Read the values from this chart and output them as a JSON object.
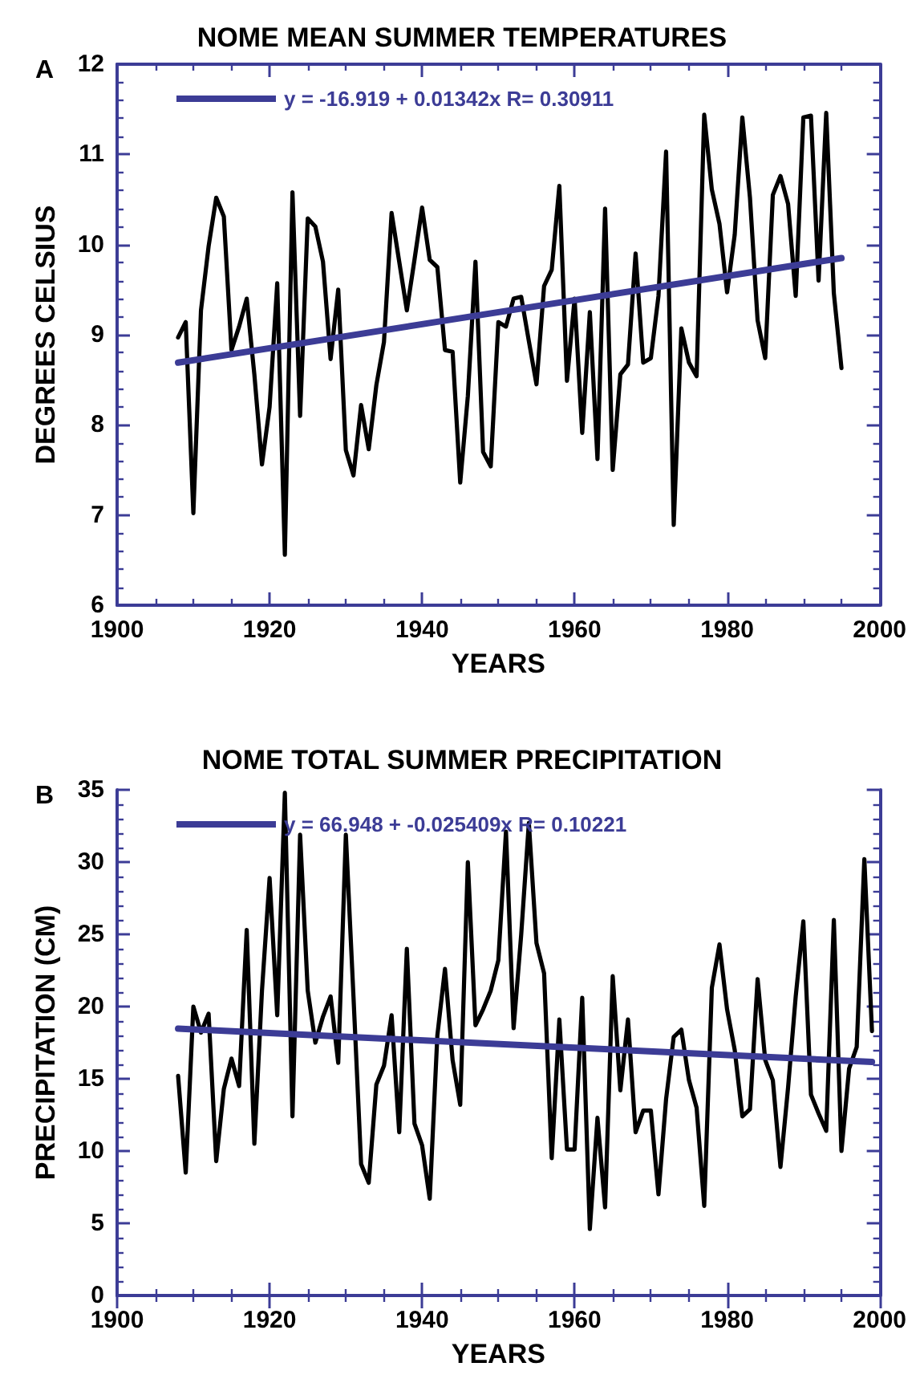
{
  "chart_data": [
    {
      "type": "line",
      "title": "NOME MEAN SUMMER TEMPERATURES",
      "xlabel": "YEARS",
      "ylabel": "DEGREES CELSIUS",
      "annotations": [
        "A"
      ],
      "legend": "top left",
      "marker": "none",
      "line_style": "solid",
      "xlim": [
        1900,
        2000
      ],
      "xticks": [
        1900,
        1920,
        1940,
        1960,
        1980,
        2000
      ],
      "ylim": [
        6,
        12
      ],
      "yticks": [
        6,
        7,
        8,
        9,
        10,
        11,
        12
      ],
      "x": [
        1908,
        1909,
        1910,
        1911,
        1912,
        1913,
        1914,
        1915,
        1916,
        1917,
        1918,
        1919,
        1920,
        1921,
        1922,
        1923,
        1924,
        1925,
        1926,
        1927,
        1928,
        1929,
        1930,
        1931,
        1932,
        1933,
        1934,
        1935,
        1936,
        1937,
        1938,
        1939,
        1940,
        1941,
        1942,
        1943,
        1944,
        1945,
        1946,
        1947,
        1948,
        1949,
        1950,
        1951,
        1952,
        1953,
        1954,
        1955,
        1956,
        1957,
        1958,
        1959,
        1960,
        1961,
        1962,
        1963,
        1964,
        1965,
        1966,
        1967,
        1968,
        1969,
        1970,
        1971,
        1972,
        1973,
        1974,
        1975,
        1976,
        1977,
        1978,
        1979,
        1980,
        1981,
        1982,
        1983,
        1984,
        1985,
        1986,
        1987,
        1988,
        1989,
        1990,
        1991,
        1992,
        1993,
        1994,
        1995
      ],
      "series": [
        {
          "color": "#000000",
          "values": [
            8.97,
            9.14,
            7.02,
            9.27,
            9.98,
            10.52,
            10.31,
            8.83,
            9.09,
            9.4,
            8.56,
            7.56,
            8.2,
            9.57,
            6.56,
            10.58,
            8.1,
            10.29,
            10.2,
            9.81,
            8.73,
            9.5,
            7.72,
            7.44,
            8.22,
            7.73,
            8.44,
            8.92,
            10.35,
            9.81,
            9.27,
            9.83,
            10.41,
            9.83,
            9.75,
            8.83,
            8.81,
            7.36,
            8.32,
            9.81,
            7.7,
            7.54,
            9.14,
            9.09,
            9.4,
            9.42,
            8.93,
            8.45,
            9.54,
            9.72,
            10.65,
            8.49,
            9.4,
            7.91,
            9.25,
            7.62,
            10.4,
            7.5,
            8.56,
            8.67,
            9.9,
            8.69,
            8.74,
            9.43,
            11.03,
            6.89,
            9.07,
            8.69,
            8.54,
            11.44,
            10.61,
            10.23,
            9.47,
            10.11,
            11.41,
            10.52,
            9.16,
            8.74,
            10.55,
            10.76,
            10.45,
            9.43,
            11.41,
            11.43,
            9.6,
            11.46,
            9.46,
            8.63
          ]
        },
        {
          "name": "y = -16.919 + 0.01342x R= 0.30911",
          "color": "#3c3c96",
          "x": [
            1908,
            1995
          ],
          "values": [
            8.69,
            9.85
          ]
        }
      ]
    },
    {
      "type": "line",
      "title": "NOME TOTAL SUMMER PRECIPITATION",
      "xlabel": "YEARS",
      "ylabel": "PRECIPITATION (CM)",
      "annotations": [
        "B"
      ],
      "legend": "top left",
      "marker": "none",
      "line_style": "solid",
      "xlim": [
        1900,
        2000
      ],
      "xticks": [
        1900,
        1920,
        1940,
        1960,
        1980,
        2000
      ],
      "ylim": [
        0,
        35
      ],
      "yticks": [
        0,
        5,
        10,
        15,
        20,
        25,
        30,
        35
      ],
      "x": [
        1908,
        1909,
        1910,
        1911,
        1912,
        1913,
        1914,
        1915,
        1916,
        1917,
        1918,
        1919,
        1920,
        1921,
        1922,
        1923,
        1924,
        1925,
        1926,
        1927,
        1928,
        1929,
        1930,
        1931,
        1932,
        1933,
        1934,
        1935,
        1936,
        1937,
        1938,
        1939,
        1940,
        1941,
        1942,
        1943,
        1944,
        1945,
        1946,
        1947,
        1948,
        1949,
        1950,
        1951,
        1952,
        1953,
        1954,
        1955,
        1956,
        1957,
        1958,
        1959,
        1960,
        1961,
        1962,
        1963,
        1964,
        1965,
        1966,
        1967,
        1968,
        1969,
        1970,
        1971,
        1972,
        1973,
        1974,
        1975,
        1976,
        1977,
        1978,
        1979,
        1980,
        1981,
        1982,
        1983,
        1984,
        1985,
        1986,
        1987,
        1988,
        1989,
        1990,
        1991,
        1992,
        1993,
        1994,
        1995,
        1996,
        1997,
        1998,
        1999
      ],
      "series": [
        {
          "color": "#000000",
          "values": [
            15.2,
            8.5,
            20,
            18.2,
            19.5,
            9.3,
            14.3,
            16.4,
            14.5,
            25.3,
            10.5,
            21.1,
            28.9,
            19.4,
            34.8,
            12.4,
            31.9,
            21.1,
            17.5,
            19.3,
            20.7,
            16.1,
            31.9,
            20.7,
            9.1,
            7.8,
            14.6,
            15.9,
            19.4,
            11.3,
            24,
            11.9,
            10.4,
            6.7,
            18,
            22.6,
            16.3,
            13.2,
            30,
            18.7,
            19.8,
            21.1,
            23.2,
            32.1,
            18.5,
            25,
            32.7,
            24.4,
            22.3,
            9.5,
            19.1,
            10.1,
            10.1,
            20.6,
            4.6,
            12.3,
            6.1,
            22.1,
            14.2,
            19.1,
            11.3,
            12.8,
            12.8,
            7,
            13.6,
            17.9,
            18.4,
            14.9,
            13,
            6.2,
            21.3,
            24.3,
            19.8,
            17,
            12.4,
            12.9,
            21.9,
            16.3,
            14.9,
            8.9,
            14.4,
            20.7,
            25.9,
            13.9,
            12.6,
            11.4,
            26,
            10,
            15.7,
            17.2,
            30.2,
            18.3
          ]
        },
        {
          "name": "y = 66.948 + -0.025409x R= 0.10221",
          "color": "#3c3c96",
          "x": [
            1908,
            1999
          ],
          "values": [
            18.47,
            16.16
          ]
        }
      ]
    }
  ]
}
